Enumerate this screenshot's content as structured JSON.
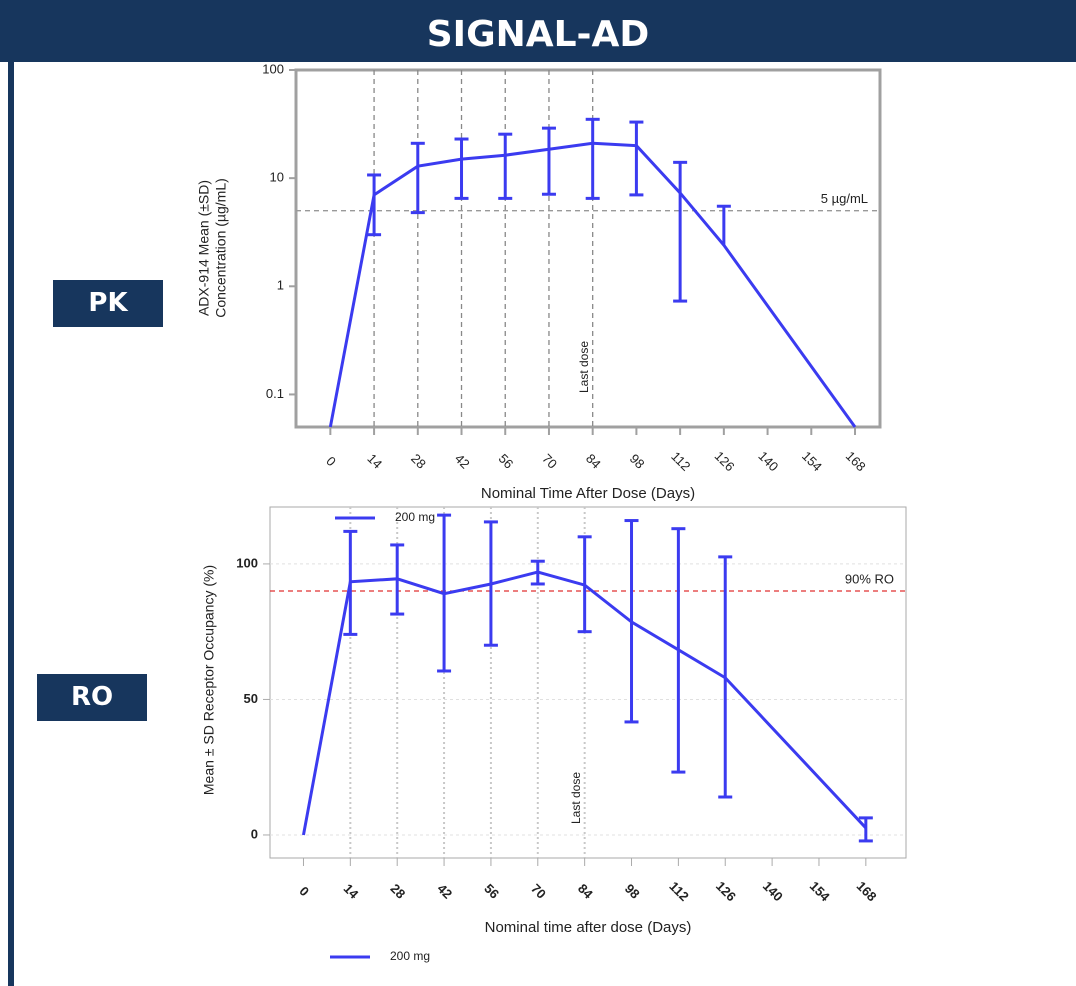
{
  "header": {
    "title": "SIGNAL-AD"
  },
  "section_labels": [
    "PK",
    "RO"
  ],
  "chart_data": [
    {
      "type": "line",
      "x_label": "Nominal Time After Dose (Days)",
      "y_label": [
        "ADX-914 Mean (±SD)",
        "Concentration (µg/mL)"
      ],
      "x": [
        0,
        14,
        28,
        42,
        56,
        70,
        84,
        98,
        112,
        126,
        168
      ],
      "series": [
        {
          "name": "200 mg",
          "color": "#3b3bf0",
          "values": [
            0.05,
            7.0,
            12.9,
            15,
            16.3,
            18.5,
            21,
            20,
            7.3,
            2.4,
            0.05
          ],
          "lower": [
            null,
            3.0,
            4.8,
            6.5,
            6.5,
            7.1,
            6.5,
            7,
            0.73,
            null,
            null
          ],
          "upper": [
            null,
            10.7,
            21,
            23,
            25.5,
            29,
            35,
            33,
            14,
            5.5,
            null
          ]
        }
      ],
      "yscale": "log",
      "xlim": [
        -11,
        176
      ],
      "ylim": [
        0.05,
        100
      ],
      "xticks": [
        0,
        14,
        28,
        42,
        56,
        70,
        84,
        98,
        112,
        126,
        140,
        154,
        168
      ],
      "yticks": [
        0.1,
        1,
        10,
        100
      ],
      "vlines": [
        14,
        28,
        42,
        56,
        70,
        84
      ],
      "vline_style": "dashed",
      "reference_lines": [
        {
          "value": 5,
          "label": "5 µg/mL",
          "color": "#999999"
        }
      ],
      "annotations": [
        {
          "x": 84,
          "text": "Last dose"
        }
      ],
      "legend": []
    },
    {
      "type": "line",
      "x_label": "Nominal time after dose (Days)",
      "y_label": [
        "Mean ± SD Receptor Occupancy (%)"
      ],
      "x": [
        0,
        14,
        28,
        42,
        56,
        70,
        84,
        98,
        112,
        126,
        168
      ],
      "series": [
        {
          "name": "200 mg",
          "color": "#3b3bf0",
          "values": [
            0,
            93.4,
            94.5,
            89,
            92.6,
            97,
            92.2,
            78.6,
            68.3,
            58,
            2.6
          ],
          "lower": [
            null,
            74,
            81.5,
            60.5,
            70,
            92.6,
            75,
            41.7,
            23.2,
            14,
            -2.2
          ],
          "upper": [
            null,
            112,
            107,
            118,
            115.5,
            101,
            110,
            116,
            113,
            102.6,
            6.3
          ]
        }
      ],
      "yscale": "linear",
      "xlim": [
        -10,
        180
      ],
      "ylim": [
        -8.5,
        121
      ],
      "xticks": [
        0,
        14,
        28,
        42,
        56,
        70,
        84,
        98,
        112,
        126,
        140,
        154,
        168
      ],
      "yticks": [
        0,
        50,
        100
      ],
      "vlines": [
        14,
        28,
        42,
        56,
        70,
        84
      ],
      "vline_style": "dotted",
      "reference_lines": [
        {
          "value": 90,
          "label": "90% RO",
          "color": "#e03030"
        }
      ],
      "annotations": [
        {
          "x": 84,
          "text": "Last dose"
        }
      ],
      "legend": [
        "top",
        "bottom"
      ]
    }
  ]
}
